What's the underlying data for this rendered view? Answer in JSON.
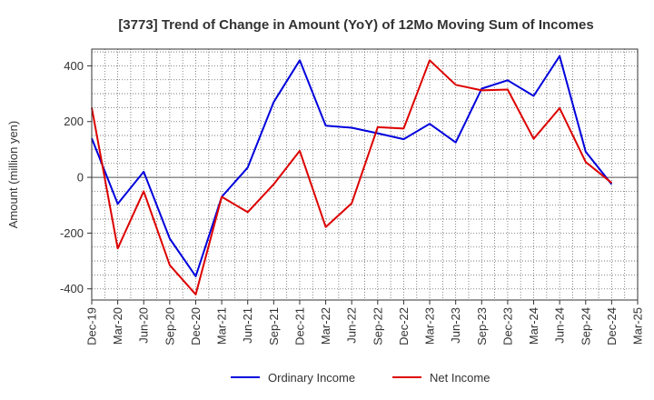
{
  "chart_data": {
    "type": "line",
    "title": "[3773]  Trend of Change in Amount (YoY) of 12Mo Moving Sum of Incomes",
    "ylabel": "Amount (million yen)",
    "xlabel": "",
    "ylim": [
      -440,
      460
    ],
    "yticks": [
      -400,
      -200,
      0,
      200,
      400
    ],
    "grid": true,
    "legend": "bottom",
    "x": [
      "Dec-19",
      "Mar-20",
      "Jun-20",
      "Sep-20",
      "Dec-20",
      "Mar-21",
      "Jun-21",
      "Sep-21",
      "Dec-21",
      "Mar-22",
      "Jun-22",
      "Sep-22",
      "Dec-22",
      "Mar-23",
      "Jun-23",
      "Sep-23",
      "Dec-23",
      "Mar-24",
      "Jun-24",
      "Sep-24",
      "Dec-24",
      "Mar-25"
    ],
    "series": [
      {
        "name": "Ordinary Income",
        "color": "#0000dd",
        "values": [
          140,
          -95,
          20,
          -220,
          -355,
          -70,
          35,
          270,
          420,
          185,
          178,
          158,
          137,
          192,
          125,
          318,
          348,
          292,
          435,
          92,
          -25,
          null
        ]
      },
      {
        "name": "Net Income",
        "color": "#dd0000",
        "values": [
          250,
          -255,
          -50,
          -315,
          -420,
          -70,
          -125,
          -25,
          95,
          -178,
          -93,
          180,
          175,
          420,
          332,
          312,
          315,
          138,
          248,
          55,
          -20,
          null
        ]
      }
    ]
  }
}
